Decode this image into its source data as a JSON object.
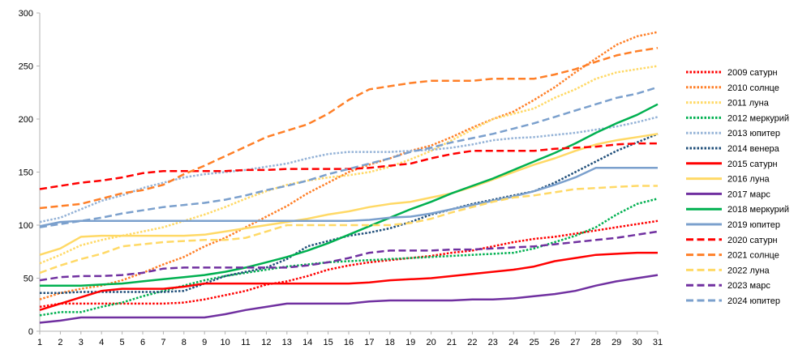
{
  "chart_data": {
    "type": "line",
    "title": "",
    "xlabel": "",
    "ylabel": "",
    "ylim": [
      0,
      300
    ],
    "yticks": [
      0,
      50,
      100,
      150,
      200,
      250,
      300
    ],
    "x": [
      1,
      2,
      3,
      4,
      5,
      6,
      7,
      8,
      9,
      10,
      11,
      12,
      13,
      14,
      15,
      16,
      17,
      18,
      19,
      20,
      21,
      22,
      23,
      24,
      25,
      26,
      27,
      28,
      29,
      30,
      31
    ],
    "grid": {
      "horizontal": false,
      "vertical": false
    },
    "legend_position": "right",
    "series": [
      {
        "name": "2009 сатурн",
        "color": "#ff0000",
        "dash": "dot",
        "values": [
          23,
          26,
          26,
          26,
          26,
          26,
          26,
          27,
          30,
          34,
          38,
          44,
          47,
          52,
          58,
          62,
          65,
          67,
          69,
          71,
          74,
          76,
          80,
          84,
          87,
          89,
          92,
          95,
          98,
          101,
          104
        ]
      },
      {
        "name": "2010 солнце",
        "color": "#ff7f27",
        "dash": "dot",
        "values": [
          30,
          36,
          40,
          43,
          48,
          55,
          63,
          70,
          80,
          88,
          98,
          108,
          118,
          130,
          140,
          150,
          157,
          163,
          170,
          175,
          183,
          192,
          200,
          207,
          218,
          230,
          244,
          257,
          270,
          278,
          282
        ]
      },
      {
        "name": "2011 луна",
        "color": "#ffd966",
        "dash": "dot",
        "values": [
          64,
          72,
          81,
          86,
          90,
          94,
          98,
          104,
          110,
          117,
          125,
          132,
          138,
          142,
          145,
          147,
          150,
          155,
          162,
          170,
          180,
          190,
          200,
          205,
          210,
          220,
          228,
          238,
          244,
          247,
          250
        ]
      },
      {
        "name": "2012 меркурий",
        "color": "#00b050",
        "dash": "dot",
        "values": [
          15,
          18,
          18,
          23,
          27,
          33,
          38,
          43,
          48,
          52,
          55,
          58,
          61,
          63,
          65,
          66,
          67,
          68,
          69,
          70,
          71,
          72,
          73,
          74,
          78,
          84,
          90,
          98,
          110,
          120,
          125
        ]
      },
      {
        "name": "2013 юпитер",
        "color": "#95b3d7",
        "dash": "dot",
        "values": [
          103,
          107,
          115,
          123,
          128,
          135,
          140,
          145,
          148,
          150,
          152,
          155,
          158,
          163,
          167,
          169,
          169,
          169,
          170,
          171,
          173,
          176,
          180,
          182,
          183,
          185,
          187,
          190,
          193,
          197,
          202
        ]
      },
      {
        "name": "2014 венера",
        "color": "#1f4e79",
        "dash": "dot",
        "values": [
          36,
          36,
          37,
          37,
          37,
          37,
          37,
          38,
          45,
          52,
          56,
          60,
          68,
          80,
          85,
          90,
          93,
          97,
          103,
          110,
          115,
          120,
          124,
          128,
          132,
          140,
          150,
          160,
          170,
          178,
          186
        ]
      },
      {
        "name": "2015 сатурн",
        "color": "#ff0000",
        "dash": "solid",
        "values": [
          20,
          26,
          32,
          38,
          40,
          40,
          40,
          42,
          45,
          45,
          45,
          45,
          45,
          45,
          45,
          45,
          46,
          48,
          49,
          50,
          52,
          54,
          56,
          58,
          61,
          66,
          69,
          72,
          73,
          74,
          74
        ]
      },
      {
        "name": "2016 луна",
        "color": "#ffd966",
        "dash": "solid",
        "values": [
          72,
          78,
          89,
          90,
          90,
          90,
          90,
          90,
          91,
          94,
          97,
          100,
          103,
          106,
          110,
          113,
          117,
          120,
          122,
          126,
          130,
          136,
          143,
          150,
          157,
          163,
          170,
          176,
          180,
          183,
          186
        ]
      },
      {
        "name": "2017 марс",
        "color": "#7030a0",
        "dash": "solid",
        "values": [
          8,
          10,
          13,
          13,
          13,
          13,
          13,
          13,
          13,
          16,
          20,
          23,
          26,
          26,
          26,
          26,
          28,
          29,
          29,
          29,
          29,
          30,
          30,
          31,
          33,
          35,
          38,
          43,
          47,
          50,
          53
        ]
      },
      {
        "name": "2018 меркурий",
        "color": "#00b050",
        "dash": "solid",
        "values": [
          43,
          43,
          43,
          44,
          45,
          47,
          49,
          51,
          53,
          56,
          60,
          65,
          70,
          76,
          83,
          91,
          99,
          107,
          115,
          122,
          130,
          137,
          144,
          152,
          160,
          168,
          177,
          187,
          196,
          204,
          214
        ]
      },
      {
        "name": "2019 юпитер",
        "color": "#7ba0cd",
        "dash": "solid",
        "values": [
          99,
          103,
          104,
          104,
          104,
          104,
          104,
          104,
          104,
          104,
          104,
          104,
          104,
          104,
          104,
          104,
          105,
          107,
          108,
          111,
          115,
          119,
          123,
          127,
          132,
          138,
          145,
          154,
          154,
          154,
          154
        ]
      },
      {
        "name": "2020 сатурн",
        "color": "#ff0000",
        "dash": "dash",
        "values": [
          134,
          137,
          140,
          142,
          145,
          149,
          151,
          151,
          151,
          151,
          152,
          152,
          153,
          153,
          153,
          153,
          154,
          156,
          158,
          163,
          167,
          170,
          170,
          170,
          170,
          172,
          173,
          174,
          176,
          177,
          177
        ]
      },
      {
        "name": "2021 солнце",
        "color": "#ff7f27",
        "dash": "dash",
        "values": [
          116,
          118,
          120,
          125,
          130,
          133,
          138,
          148,
          156,
          165,
          174,
          183,
          189,
          195,
          205,
          218,
          228,
          231,
          234,
          236,
          236,
          236,
          238,
          238,
          238,
          242,
          247,
          254,
          260,
          264,
          267
        ]
      },
      {
        "name": "2022 луна",
        "color": "#ffd966",
        "dash": "dash",
        "values": [
          55,
          62,
          68,
          73,
          80,
          82,
          84,
          85,
          86,
          86,
          88,
          94,
          100,
          100,
          100,
          100,
          100,
          100,
          102,
          106,
          112,
          117,
          122,
          126,
          128,
          131,
          134,
          135,
          136,
          137,
          137
        ]
      },
      {
        "name": "2023 марс",
        "color": "#7030a0",
        "dash": "dash",
        "values": [
          48,
          51,
          52,
          52,
          53,
          55,
          59,
          60,
          60,
          60,
          60,
          60,
          60,
          62,
          65,
          69,
          74,
          76,
          76,
          76,
          77,
          77,
          78,
          79,
          80,
          82,
          84,
          86,
          88,
          91,
          94
        ]
      },
      {
        "name": "2024 юпитер",
        "color": "#7ba0cd",
        "dash": "dash",
        "values": [
          98,
          101,
          104,
          107,
          111,
          114,
          117,
          119,
          121,
          124,
          128,
          133,
          137,
          142,
          148,
          153,
          158,
          163,
          169,
          173,
          178,
          182,
          186,
          191,
          196,
          202,
          208,
          214,
          220,
          224,
          230
        ]
      }
    ]
  }
}
